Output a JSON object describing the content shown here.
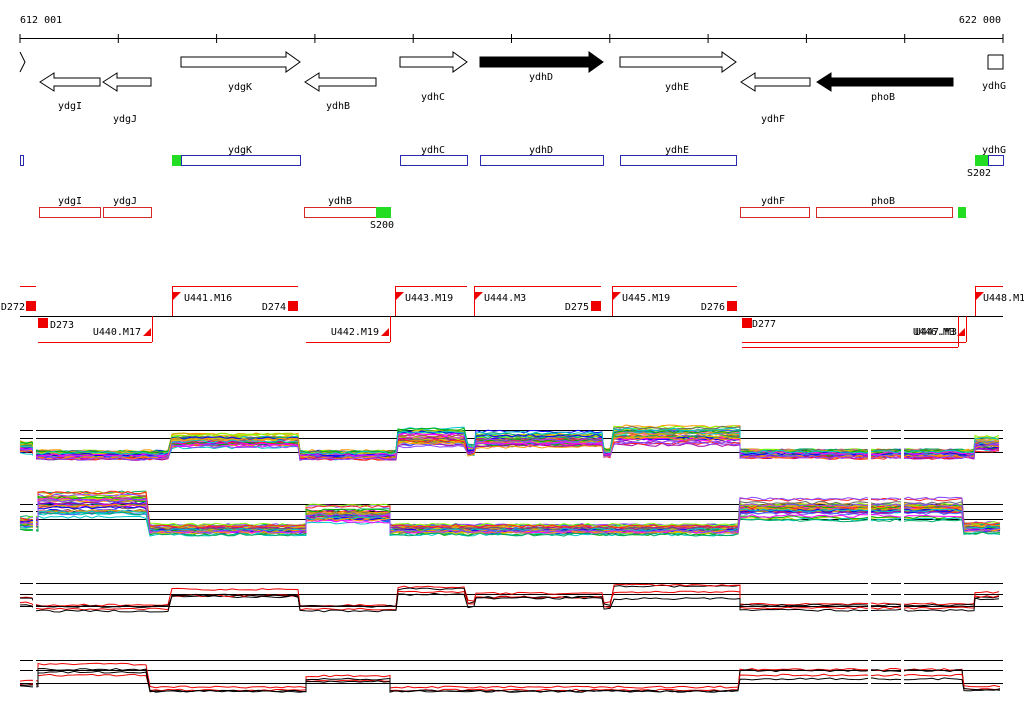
{
  "ruler": {
    "start_label": "612 001",
    "end_label": "622 000"
  },
  "colors": {
    "strand_plus": "#2b2bb0",
    "strand_minus": "#d42a2a",
    "marker": "#ff0000",
    "sigma": "#22dd22",
    "trace_palette": [
      "#d0d000",
      "#ff2020",
      "#00b000",
      "#0000ff",
      "#ff00ff",
      "#00c8c8",
      "#ff9900",
      "#8844ff",
      "#88ff00",
      "#996633",
      "#ff6699",
      "#4466ff",
      "#00aa66",
      "#aa00aa",
      "#666666",
      "#ccaa00"
    ],
    "emphasis_red": "#ee0000",
    "emphasis_black": "#000000"
  },
  "genes": [
    {
      "name": "ydgI",
      "strand": "minus",
      "filled": false
    },
    {
      "name": "ydgJ",
      "strand": "minus",
      "filled": false
    },
    {
      "name": "ydgK",
      "strand": "plus",
      "filled": false
    },
    {
      "name": "ydhB",
      "strand": "minus",
      "filled": false
    },
    {
      "name": "ydhC",
      "strand": "plus",
      "filled": false
    },
    {
      "name": "ydhD",
      "strand": "plus",
      "filled": true
    },
    {
      "name": "ydhE",
      "strand": "plus",
      "filled": false
    },
    {
      "name": "ydhF",
      "strand": "minus",
      "filled": false
    },
    {
      "name": "phoB",
      "strand": "minus",
      "filled": true
    },
    {
      "name": "ydhG",
      "strand": "plus",
      "filled": false
    }
  ],
  "plus_track": [
    {
      "name": ""
    },
    {
      "name": "ydgK"
    },
    {
      "name": "ydhC"
    },
    {
      "name": "ydhD"
    },
    {
      "name": "ydhE"
    },
    {
      "name": "ydhG"
    }
  ],
  "minus_track": [
    {
      "name": "ydgI"
    },
    {
      "name": "ydgJ"
    },
    {
      "name": "ydhB"
    },
    {
      "name": "ydhF"
    },
    {
      "name": "phoB"
    }
  ],
  "sigma_sites": [
    {
      "label": ""
    },
    {
      "label": "S200"
    },
    {
      "label": "S202"
    },
    {
      "label": ""
    }
  ],
  "transcription_units": [
    {
      "label": "U441.M16",
      "strand": "plus"
    },
    {
      "label": "U443.M19",
      "strand": "plus"
    },
    {
      "label": "U444.M3",
      "strand": "plus"
    },
    {
      "label": "U445.M19",
      "strand": "plus"
    },
    {
      "label": "U448.M1",
      "strand": "plus"
    },
    {
      "label": "U440.M17",
      "strand": "minus"
    },
    {
      "label": "U442.M19",
      "strand": "minus"
    },
    {
      "label": "U446.M3",
      "strand": "minus"
    },
    {
      "label": "U447.M3",
      "strand": "minus"
    }
  ],
  "terminators": [
    {
      "label": "D272"
    },
    {
      "label": "D273"
    },
    {
      "label": "D274"
    },
    {
      "label": "D275"
    },
    {
      "label": "D276"
    },
    {
      "label": "D277"
    }
  ]
}
